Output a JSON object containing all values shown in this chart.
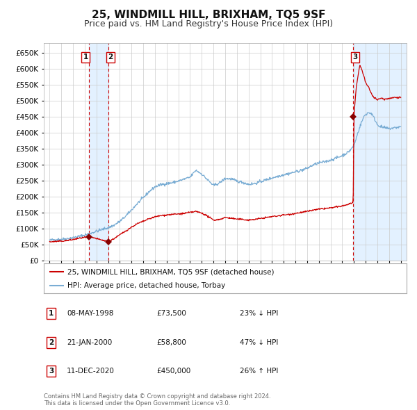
{
  "title": "25, WINDMILL HILL, BRIXHAM, TQ5 9SF",
  "subtitle": "Price paid vs. HM Land Registry's House Price Index (HPI)",
  "title_fontsize": 11,
  "subtitle_fontsize": 9,
  "background_color": "#ffffff",
  "plot_bg_color": "#ffffff",
  "grid_color": "#cccccc",
  "red_line_color": "#cc0000",
  "blue_line_color": "#7aadd4",
  "highlight_bg_color": "#ddeeff",
  "dashed_line_color": "#cc0000",
  "sale_marker_color": "#880000",
  "ylim": [
    0,
    680000
  ],
  "ytick_step": 50000,
  "legend_text_1": "25, WINDMILL HILL, BRIXHAM, TQ5 9SF (detached house)",
  "legend_text_2": "HPI: Average price, detached house, Torbay",
  "table_entries": [
    {
      "num": "1",
      "date": "08-MAY-1998",
      "price": "£73,500",
      "change": "23% ↓ HPI"
    },
    {
      "num": "2",
      "date": "21-JAN-2000",
      "price": "£58,800",
      "change": "47% ↓ HPI"
    },
    {
      "num": "3",
      "date": "11-DEC-2020",
      "price": "£450,000",
      "change": "26% ↑ HPI"
    }
  ],
  "footnote": "Contains HM Land Registry data © Crown copyright and database right 2024.\nThis data is licensed under the Open Government Licence v3.0.",
  "sale_1_year": 1998.36,
  "sale_1_price": 73500,
  "sale_2_year": 2000.05,
  "sale_2_price": 58800,
  "sale_3_year": 2020.94,
  "sale_3_price": 450000,
  "xmin": 1994.5,
  "xmax": 2025.5
}
